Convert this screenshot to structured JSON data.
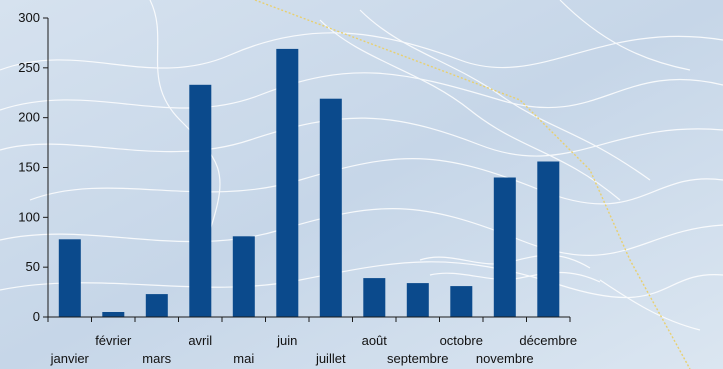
{
  "chart_data": {
    "type": "bar",
    "title": "",
    "xlabel": "",
    "ylabel": "",
    "categories": [
      "janvier",
      "février",
      "mars",
      "avril",
      "mai",
      "juin",
      "juillet",
      "août",
      "septembre",
      "octobre",
      "novembre",
      "décembre"
    ],
    "series": [
      {
        "values": [
          78,
          5,
          23,
          233,
          81,
          269,
          219,
          39,
          34,
          31,
          140,
          156
        ]
      }
    ],
    "ylim": [
      0,
      300
    ],
    "yticks": [
      0,
      50,
      100,
      150,
      200,
      250,
      300
    ],
    "grid": false,
    "legend": "none",
    "colors": {
      "bar": "#0b4a8c",
      "axis": "#1a1a1a",
      "background": "#c9d8e8",
      "contour": "#ffffff",
      "boundary_line": "#e8d070"
    }
  }
}
